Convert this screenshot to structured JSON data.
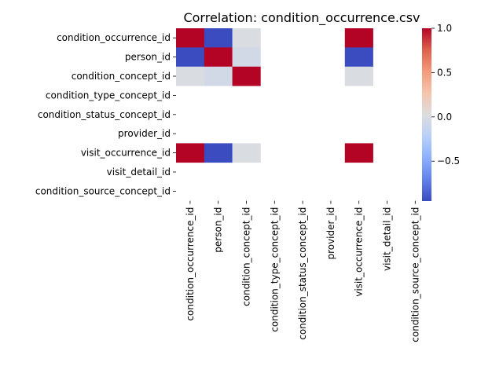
{
  "chart_data": {
    "type": "heatmap",
    "title": "Correlation: condition_occurrence.csv",
    "row_labels": [
      "condition_occurrence_id",
      "person_id",
      "condition_concept_id",
      "condition_type_concept_id",
      "condition_status_concept_id",
      "provider_id",
      "visit_occurrence_id",
      "visit_detail_id",
      "condition_source_concept_id"
    ],
    "col_labels": [
      "condition_occurrence_id",
      "person_id",
      "condition_concept_id",
      "condition_type_concept_id",
      "condition_status_concept_id",
      "provider_id",
      "visit_occurrence_id",
      "visit_detail_id",
      "condition_source_concept_id"
    ],
    "values": [
      [
        1.0,
        -0.95,
        0.0,
        null,
        null,
        null,
        1.0,
        null,
        null
      ],
      [
        -0.95,
        1.0,
        -0.05,
        null,
        null,
        null,
        -0.95,
        null,
        null
      ],
      [
        0.0,
        -0.05,
        1.0,
        null,
        null,
        null,
        0.0,
        null,
        null
      ],
      [
        null,
        null,
        null,
        null,
        null,
        null,
        null,
        null,
        null
      ],
      [
        null,
        null,
        null,
        null,
        null,
        null,
        null,
        null,
        null
      ],
      [
        null,
        null,
        null,
        null,
        null,
        null,
        null,
        null,
        null
      ],
      [
        1.0,
        -0.95,
        0.0,
        null,
        null,
        null,
        1.0,
        null,
        null
      ],
      [
        null,
        null,
        null,
        null,
        null,
        null,
        null,
        null,
        null
      ],
      [
        null,
        null,
        null,
        null,
        null,
        null,
        null,
        null,
        null
      ]
    ],
    "colormap": "coolwarm",
    "vmin": -0.95,
    "vmax": 1.0,
    "colorbar": {
      "ticks": [
        1.0,
        0.5,
        0.0,
        -0.5
      ],
      "tick_labels": [
        "1.0",
        "0.5",
        "0.0",
        "−0.5"
      ]
    },
    "grid": false,
    "legend": "colorbar-right"
  }
}
